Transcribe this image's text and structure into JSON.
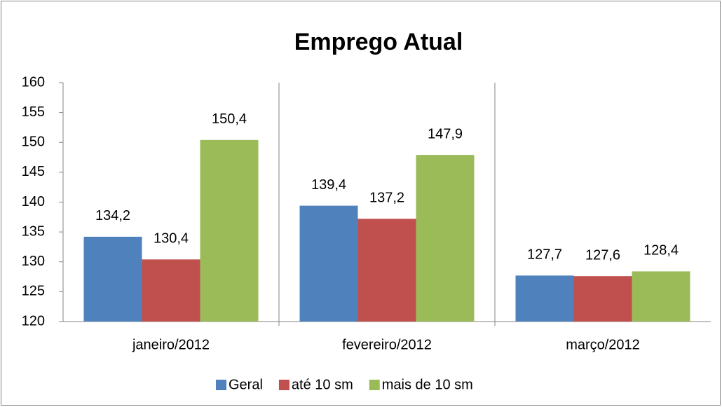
{
  "chart_data": {
    "type": "bar",
    "title": "Emprego Atual",
    "categories": [
      "janeiro/2012",
      "fevereiro/2012",
      "março/2012"
    ],
    "series": [
      {
        "name": "Geral",
        "color": "#4f81bd",
        "values": [
          134.2,
          139.4,
          127.7
        ],
        "value_labels": [
          "134,2",
          "139,4",
          "127,7"
        ]
      },
      {
        "name": "até 10 sm",
        "color": "#c0504d",
        "values": [
          130.4,
          137.2,
          127.6
        ],
        "value_labels": [
          "130,4",
          "137,2",
          "127,6"
        ]
      },
      {
        "name": "mais de 10 sm",
        "color": "#9bbb59",
        "values": [
          150.4,
          147.9,
          128.4
        ],
        "value_labels": [
          "150,4",
          "147,9",
          "128,4"
        ]
      }
    ],
    "ylim": [
      120,
      160
    ],
    "yticks": [
      120,
      125,
      130,
      135,
      140,
      145,
      150,
      155,
      160
    ],
    "legend": "bottom"
  }
}
